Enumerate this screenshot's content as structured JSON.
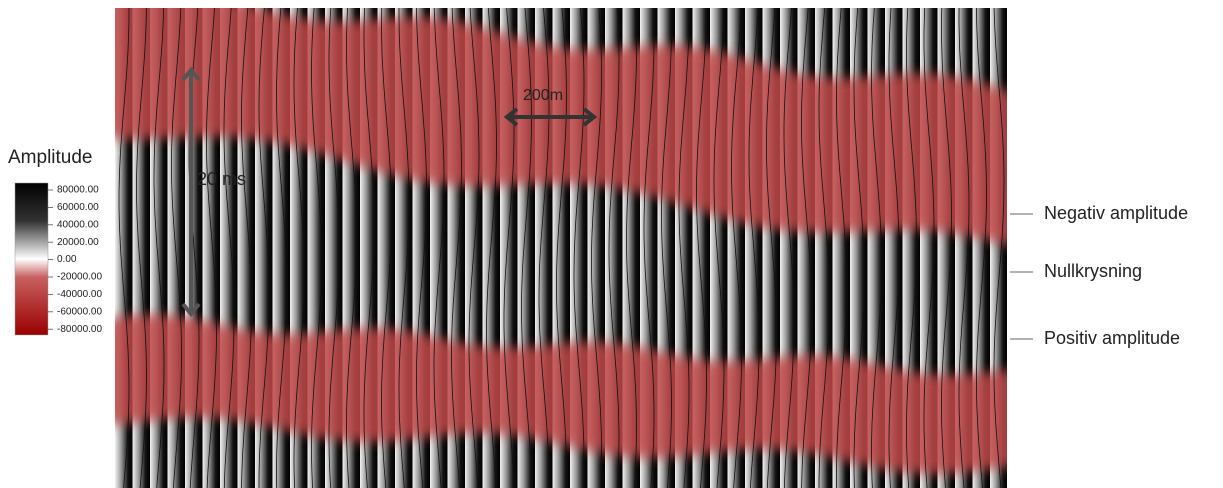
{
  "legend": {
    "title": "Amplitude",
    "ticks": [
      "80000.00",
      "60000.00",
      "40000.00",
      "20000.00",
      "0.00",
      "-20000.00",
      "-40000.00",
      "-60000.00",
      "-80000.00"
    ]
  },
  "annotations": {
    "time_scale": "20 ms",
    "distance_scale": "200m"
  },
  "labels": [
    "Negativ amplitude",
    "Nullkrysning",
    "Positiv amplitude"
  ]
}
